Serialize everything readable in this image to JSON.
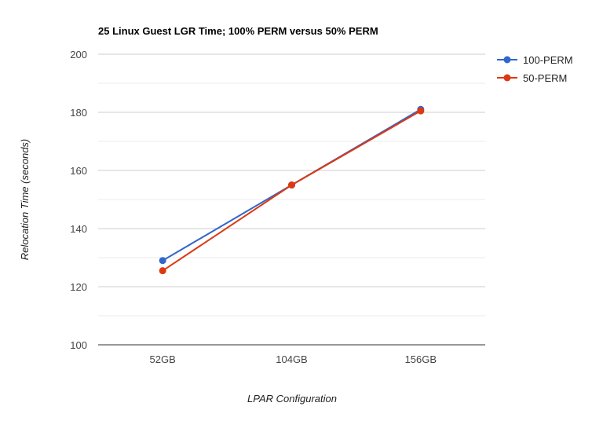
{
  "chart_data": {
    "type": "line",
    "title": "25 Linux Guest LGR Time; 100% PERM versus 50% PERM",
    "xlabel": "LPAR Configuration",
    "ylabel": "Relocation Time (seconds)",
    "categories": [
      "52GB",
      "104GB",
      "156GB"
    ],
    "ylim": [
      100,
      200
    ],
    "yticks": [
      100,
      120,
      140,
      160,
      180,
      200
    ],
    "grid": true,
    "legend_position": "right",
    "series": [
      {
        "name": "100-PERM",
        "values": [
          129,
          155,
          181
        ],
        "color": "#3366cc"
      },
      {
        "name": "50-PERM",
        "values": [
          125.5,
          155,
          180.5
        ],
        "color": "#dc3912"
      }
    ]
  }
}
